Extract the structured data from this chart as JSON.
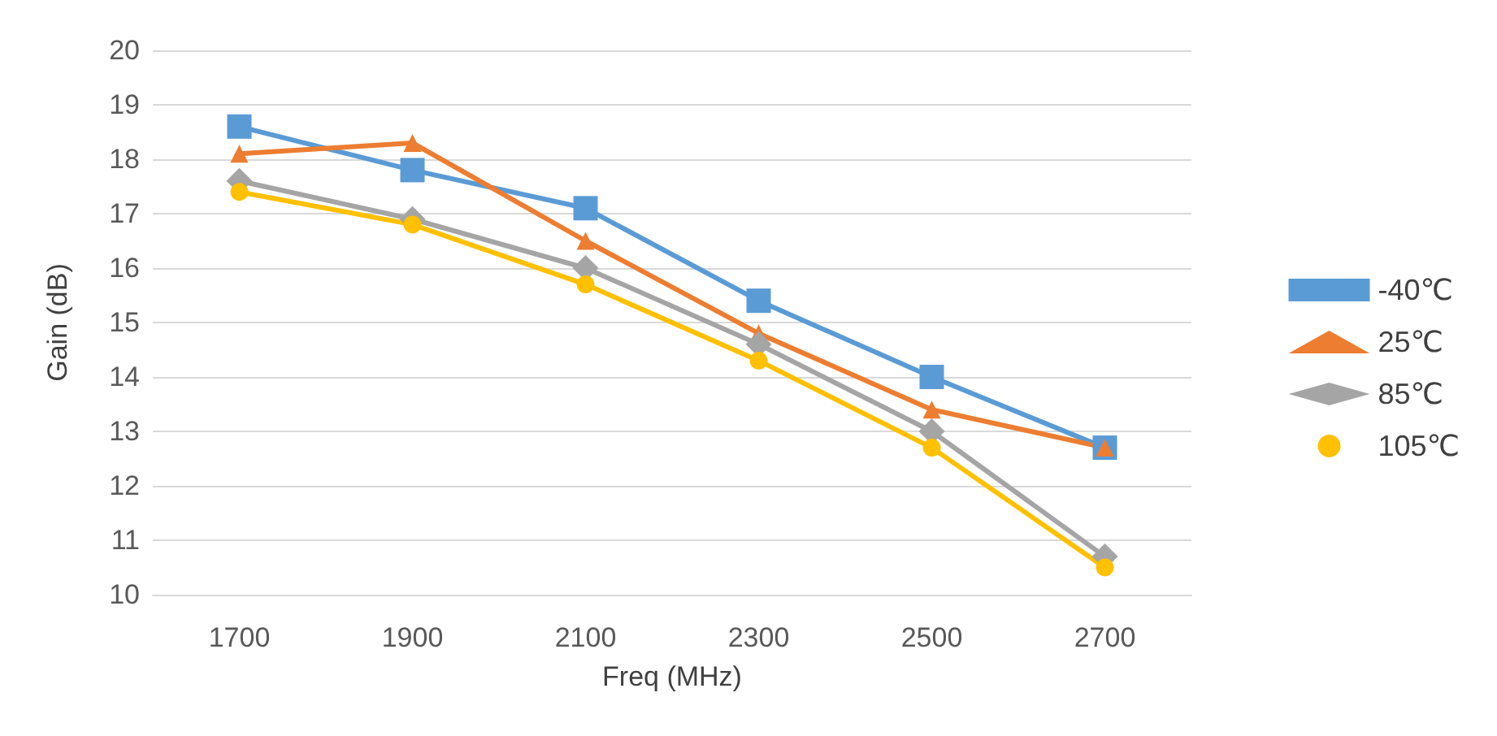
{
  "chart_data": {
    "type": "line",
    "xlabel": "Freq (MHz)",
    "ylabel": "Gain (dB)",
    "categories": [
      "1700",
      "1900",
      "2100",
      "2300",
      "2500",
      "2700"
    ],
    "series": [
      {
        "name": "-40℃",
        "color": "#5b9bd5",
        "marker": "square",
        "values": [
          18.6,
          17.8,
          17.1,
          15.4,
          14.0,
          12.7
        ]
      },
      {
        "name": "25℃",
        "color": "#ed7d31",
        "marker": "triangle",
        "values": [
          18.1,
          18.3,
          16.5,
          14.8,
          13.4,
          12.7
        ]
      },
      {
        "name": "85℃",
        "color": "#a5a5a5",
        "marker": "diamond",
        "values": [
          17.6,
          16.9,
          16.0,
          14.6,
          13.0,
          10.7
        ]
      },
      {
        "name": "105℃",
        "color": "#ffc000",
        "marker": "circle",
        "values": [
          17.4,
          16.8,
          15.7,
          14.3,
          12.7,
          10.5
        ]
      }
    ],
    "ylim": [
      10,
      20
    ],
    "yticks": [
      10,
      11,
      12,
      13,
      14,
      15,
      16,
      17,
      18,
      19,
      20
    ],
    "grid": "y",
    "legend": "right",
    "line_style": "solid"
  }
}
